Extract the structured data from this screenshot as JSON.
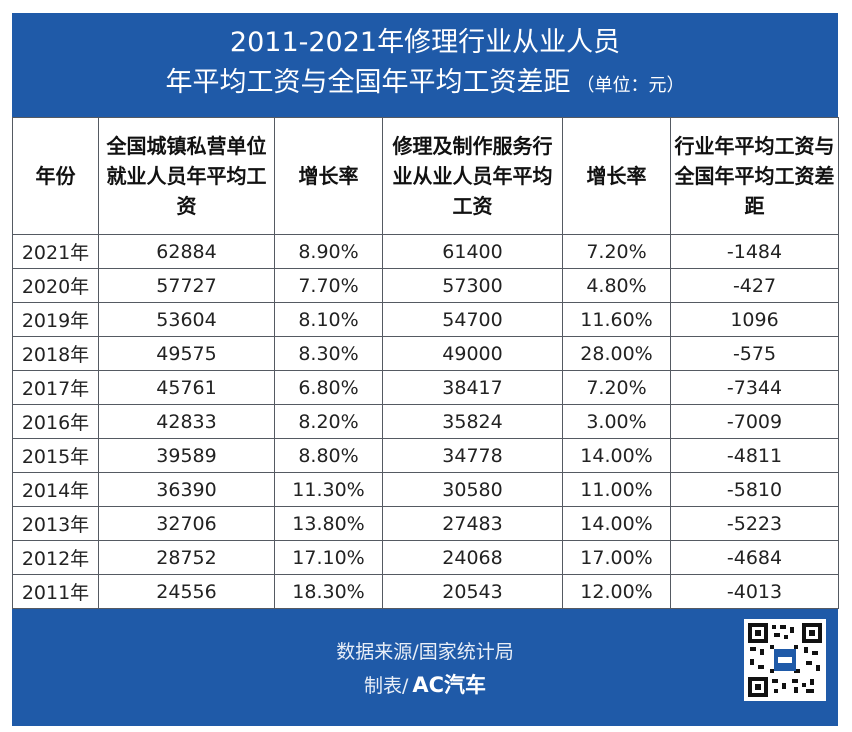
{
  "title": {
    "line1": "2011-2021年修理行业从业人员",
    "line2": "年平均工资与全国年平均工资差距",
    "unit": "（单位：元）"
  },
  "table": {
    "headers": [
      "年份",
      "全国城镇私营单位就业人员年平均工资",
      "增长率",
      "修理及制作服务行业从业人员年平均工资",
      "增长率",
      "行业年平均工资与全国年平均工资差距"
    ],
    "rows": [
      [
        "2021年",
        "62884",
        "8.90%",
        "61400",
        "7.20%",
        "-1484"
      ],
      [
        "2020年",
        "57727",
        "7.70%",
        "57300",
        "4.80%",
        "-427"
      ],
      [
        "2019年",
        "53604",
        "8.10%",
        "54700",
        "11.60%",
        "1096"
      ],
      [
        "2018年",
        "49575",
        "8.30%",
        "49000",
        "28.00%",
        "-575"
      ],
      [
        "2017年",
        "45761",
        "6.80%",
        "38417",
        "7.20%",
        "-7344"
      ],
      [
        "2016年",
        "42833",
        "8.20%",
        "35824",
        "3.00%",
        "-7009"
      ],
      [
        "2015年",
        "39589",
        "8.80%",
        "34778",
        "14.00%",
        "-4811"
      ],
      [
        "2014年",
        "36390",
        "11.30%",
        "30580",
        "11.00%",
        "-5810"
      ],
      [
        "2013年",
        "32706",
        "13.80%",
        "27483",
        "14.00%",
        "-5223"
      ],
      [
        "2012年",
        "28752",
        "17.10%",
        "24068",
        "17.00%",
        "-4684"
      ],
      [
        "2011年",
        "24556",
        "18.30%",
        "20543",
        "12.00%",
        "-4013"
      ]
    ]
  },
  "footer": {
    "source": "数据来源/国家统计局",
    "maker_label": "制表/",
    "brand": "AC汽车"
  },
  "colors": {
    "panel": "#1f5aa8",
    "border": "#555a62"
  },
  "icons": {
    "qr": "qr-code-icon"
  }
}
